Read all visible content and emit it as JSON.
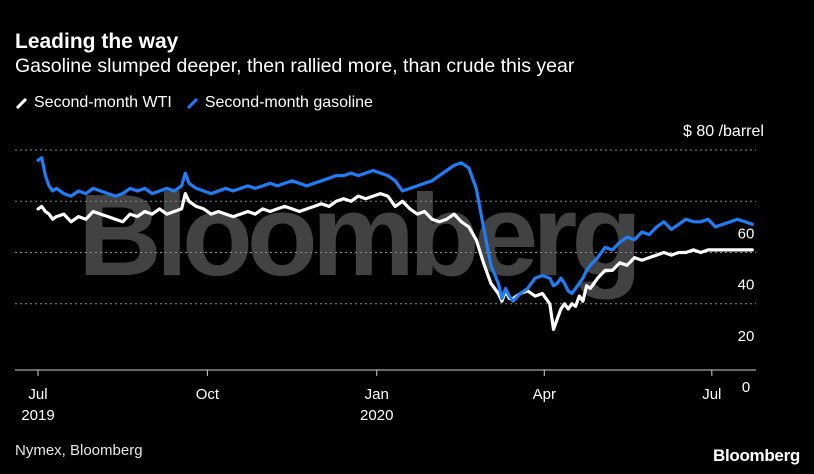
{
  "chart_data": {
    "type": "line",
    "title": "Leading the way",
    "subtitle": "Gasoline slumped deeper, then rallied more, than crude this year",
    "unit_label": "$ 80 /barrel",
    "yticks": [
      0,
      20,
      40,
      60
    ],
    "ylim": [
      0,
      80
    ],
    "xlim": [
      0,
      390
    ],
    "xticks": [
      {
        "x": 0,
        "label": "Jul",
        "year": "2019"
      },
      {
        "x": 92,
        "label": "Oct",
        "year": ""
      },
      {
        "x": 184,
        "label": "Jan",
        "year": "2020"
      },
      {
        "x": 275,
        "label": "Apr",
        "year": ""
      },
      {
        "x": 366,
        "label": "Jul",
        "year": ""
      }
    ],
    "series": [
      {
        "name": "Second-month WTI",
        "color": "#ffffff",
        "x": [
          0,
          2,
          4,
          6,
          8,
          10,
          14,
          18,
          22,
          26,
          30,
          34,
          38,
          42,
          46,
          50,
          54,
          58,
          62,
          66,
          70,
          74,
          78,
          80,
          82,
          86,
          90,
          94,
          98,
          102,
          106,
          110,
          114,
          118,
          122,
          126,
          130,
          134,
          138,
          142,
          146,
          150,
          154,
          158,
          162,
          166,
          170,
          174,
          178,
          182,
          186,
          190,
          194,
          198,
          202,
          206,
          210,
          214,
          218,
          222,
          226,
          230,
          234,
          238,
          242,
          246,
          250,
          252,
          254,
          256,
          258,
          262,
          266,
          270,
          274,
          278,
          280,
          282,
          284,
          286,
          288,
          290,
          292,
          294,
          296,
          298,
          300,
          304,
          308,
          312,
          316,
          320,
          324,
          328,
          332,
          336,
          340,
          344,
          348,
          352,
          356,
          360,
          364,
          368,
          372,
          376,
          380,
          384,
          388
        ],
        "values": [
          57,
          58,
          56,
          55,
          53,
          54,
          55,
          52,
          54,
          53,
          56,
          55,
          54,
          53,
          52,
          55,
          54,
          56,
          55,
          57,
          55,
          56,
          57,
          63,
          60,
          58,
          57,
          55,
          56,
          55,
          54,
          55,
          56,
          55,
          57,
          56,
          57,
          58,
          57,
          56,
          57,
          58,
          59,
          58,
          60,
          61,
          60,
          62,
          61,
          62,
          63,
          62,
          58,
          60,
          57,
          55,
          56,
          53,
          52,
          53,
          55,
          52,
          50,
          45,
          36,
          28,
          24,
          21,
          25,
          22,
          22,
          24,
          25,
          23,
          24,
          20,
          10,
          14,
          18,
          20,
          18,
          20,
          19,
          23,
          21,
          27,
          26,
          30,
          33,
          33,
          36,
          35,
          38,
          37,
          38,
          39,
          40,
          39,
          40,
          40,
          41,
          40,
          41,
          41,
          41,
          41,
          41,
          41,
          41
        ]
      },
      {
        "name": "Second-month gasoline",
        "color": "#1f7df5",
        "x": [
          0,
          2,
          4,
          6,
          8,
          10,
          14,
          18,
          22,
          26,
          30,
          34,
          38,
          42,
          46,
          50,
          54,
          58,
          62,
          66,
          70,
          74,
          78,
          80,
          82,
          86,
          90,
          94,
          98,
          102,
          106,
          110,
          114,
          118,
          122,
          126,
          130,
          134,
          138,
          142,
          146,
          150,
          154,
          158,
          162,
          166,
          170,
          174,
          178,
          182,
          186,
          190,
          194,
          198,
          202,
          206,
          210,
          214,
          218,
          222,
          226,
          230,
          234,
          238,
          242,
          246,
          250,
          252,
          254,
          256,
          258,
          262,
          266,
          270,
          274,
          278,
          280,
          282,
          284,
          286,
          288,
          290,
          292,
          294,
          296,
          298,
          300,
          304,
          308,
          312,
          316,
          320,
          324,
          328,
          332,
          336,
          340,
          344,
          348,
          352,
          356,
          360,
          364,
          368,
          372,
          376,
          380,
          384,
          388
        ],
        "values": [
          76,
          77,
          70,
          66,
          64,
          65,
          63,
          62,
          64,
          63,
          65,
          64,
          63,
          62,
          63,
          65,
          64,
          65,
          63,
          64,
          65,
          64,
          66,
          71,
          67,
          65,
          64,
          63,
          64,
          65,
          64,
          65,
          66,
          65,
          66,
          67,
          66,
          67,
          68,
          67,
          66,
          67,
          68,
          69,
          70,
          70,
          71,
          70,
          71,
          72,
          71,
          70,
          68,
          64,
          65,
          66,
          67,
          68,
          70,
          72,
          74,
          75,
          73,
          65,
          50,
          35,
          28,
          22,
          26,
          23,
          21,
          24,
          26,
          30,
          31,
          30,
          27,
          28,
          30,
          28,
          25,
          24,
          26,
          28,
          30,
          33,
          35,
          38,
          42,
          41,
          44,
          46,
          45,
          48,
          47,
          50,
          52,
          49,
          51,
          53,
          52,
          52,
          53,
          50,
          51,
          52,
          53,
          52,
          51
        ]
      }
    ]
  },
  "source": "Nymex, Bloomberg",
  "logo": "Bloomberg",
  "watermark": "Bloomberg"
}
